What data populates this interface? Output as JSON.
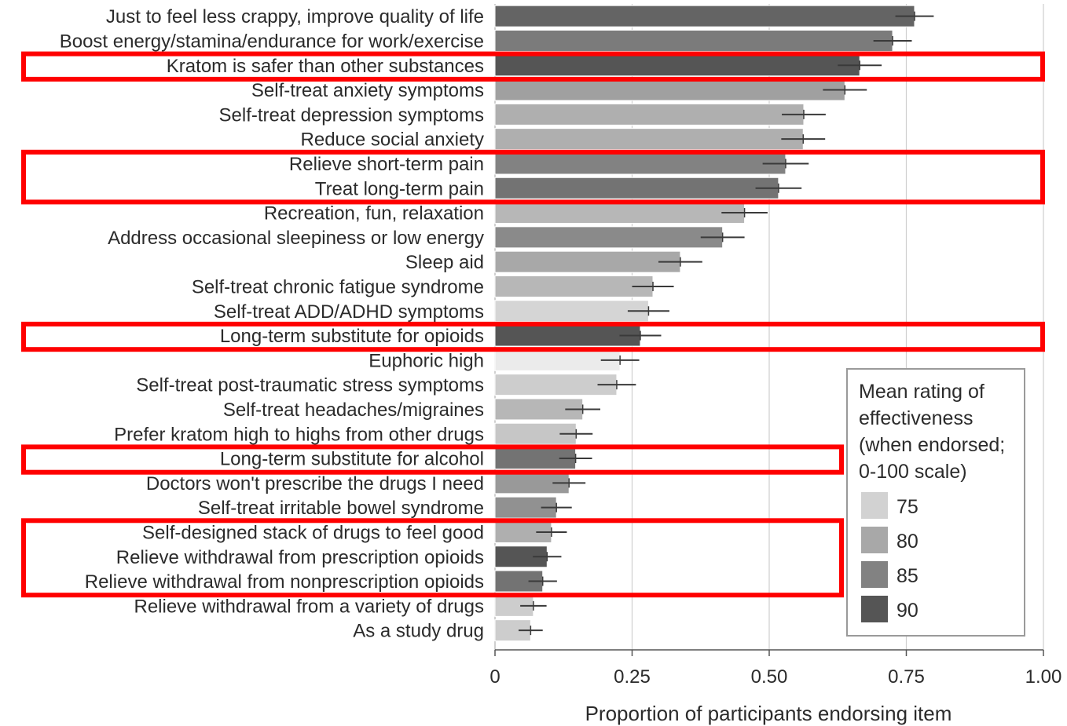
{
  "chart_data": {
    "type": "bar",
    "orientation": "horizontal",
    "xlabel": "Proportion of participants endorsing item",
    "ylabel": "",
    "xlim": [
      0,
      1.0
    ],
    "xticks": [
      "0",
      "0.25",
      "0.50",
      "0.75",
      "1.00"
    ],
    "grid": true,
    "legend": {
      "title_lines": [
        "Mean rating of",
        "effectiveness",
        "(when endorsed;",
        "0-100 scale)"
      ],
      "placement": "bottom-right",
      "entries": [
        {
          "label": "75",
          "color": "#d2d2d2"
        },
        {
          "label": "80",
          "color": "#a8a8a8"
        },
        {
          "label": "85",
          "color": "#828282"
        },
        {
          "label": "90",
          "color": "#555555"
        }
      ]
    },
    "highlight_color": "#ff0000",
    "highlight_groups": [
      [
        2
      ],
      [
        6,
        7
      ],
      [
        13
      ],
      [
        18
      ],
      [
        21,
        22,
        23
      ]
    ],
    "items": [
      {
        "label": "Just to feel less crappy, improve quality of life",
        "value": 0.765,
        "err": 0.035,
        "rating": 88
      },
      {
        "label": "Boost energy/stamina/endurance for work/exercise",
        "value": 0.725,
        "err": 0.035,
        "rating": 85
      },
      {
        "label": "Kratom is safer than other substances",
        "value": 0.665,
        "err": 0.04,
        "rating": 90
      },
      {
        "label": "Self-treat anxiety symptoms",
        "value": 0.638,
        "err": 0.04,
        "rating": 80
      },
      {
        "label": "Self-treat depression symptoms",
        "value": 0.563,
        "err": 0.04,
        "rating": 78
      },
      {
        "label": "Reduce social anxiety",
        "value": 0.562,
        "err": 0.04,
        "rating": 78
      },
      {
        "label": "Relieve short-term pain",
        "value": 0.53,
        "err": 0.042,
        "rating": 84
      },
      {
        "label": "Treat long-term pain",
        "value": 0.517,
        "err": 0.042,
        "rating": 86
      },
      {
        "label": "Recreation, fun, relaxation",
        "value": 0.455,
        "err": 0.042,
        "rating": 77
      },
      {
        "label": "Address occasional sleepiness or low energy",
        "value": 0.415,
        "err": 0.04,
        "rating": 83
      },
      {
        "label": "Sleep aid",
        "value": 0.338,
        "err": 0.04,
        "rating": 79
      },
      {
        "label": "Self-treat chronic fatigue syndrome",
        "value": 0.288,
        "err": 0.038,
        "rating": 77
      },
      {
        "label": "Self-treat ADD/ADHD symptoms",
        "value": 0.28,
        "err": 0.038,
        "rating": 73
      },
      {
        "label": "Long-term substitute for opioids",
        "value": 0.265,
        "err": 0.038,
        "rating": 90
      },
      {
        "label": "Euphoric high",
        "value": 0.228,
        "err": 0.035,
        "rating": 70
      },
      {
        "label": "Self-treat post-traumatic stress symptoms",
        "value": 0.222,
        "err": 0.035,
        "rating": 74
      },
      {
        "label": "Self-treat headaches/migraines",
        "value": 0.16,
        "err": 0.032,
        "rating": 77
      },
      {
        "label": "Prefer kratom high to highs from other drugs",
        "value": 0.148,
        "err": 0.03,
        "rating": 75
      },
      {
        "label": "Long-term substitute for alcohol",
        "value": 0.147,
        "err": 0.03,
        "rating": 86
      },
      {
        "label": "Doctors won't prescribe the drugs I need",
        "value": 0.135,
        "err": 0.03,
        "rating": 81
      },
      {
        "label": "Self-treat irritable bowel syndrome",
        "value": 0.112,
        "err": 0.028,
        "rating": 82
      },
      {
        "label": "Self-designed stack of drugs to feel good",
        "value": 0.103,
        "err": 0.028,
        "rating": 78
      },
      {
        "label": "Relieve withdrawal from prescription opioids",
        "value": 0.095,
        "err": 0.026,
        "rating": 90
      },
      {
        "label": "Relieve withdrawal from nonprescription opioids",
        "value": 0.087,
        "err": 0.026,
        "rating": 86
      },
      {
        "label": "Relieve withdrawal from a variety of drugs",
        "value": 0.07,
        "err": 0.024,
        "rating": 74
      },
      {
        "label": "As a study drug",
        "value": 0.065,
        "err": 0.022,
        "rating": 74
      }
    ]
  }
}
